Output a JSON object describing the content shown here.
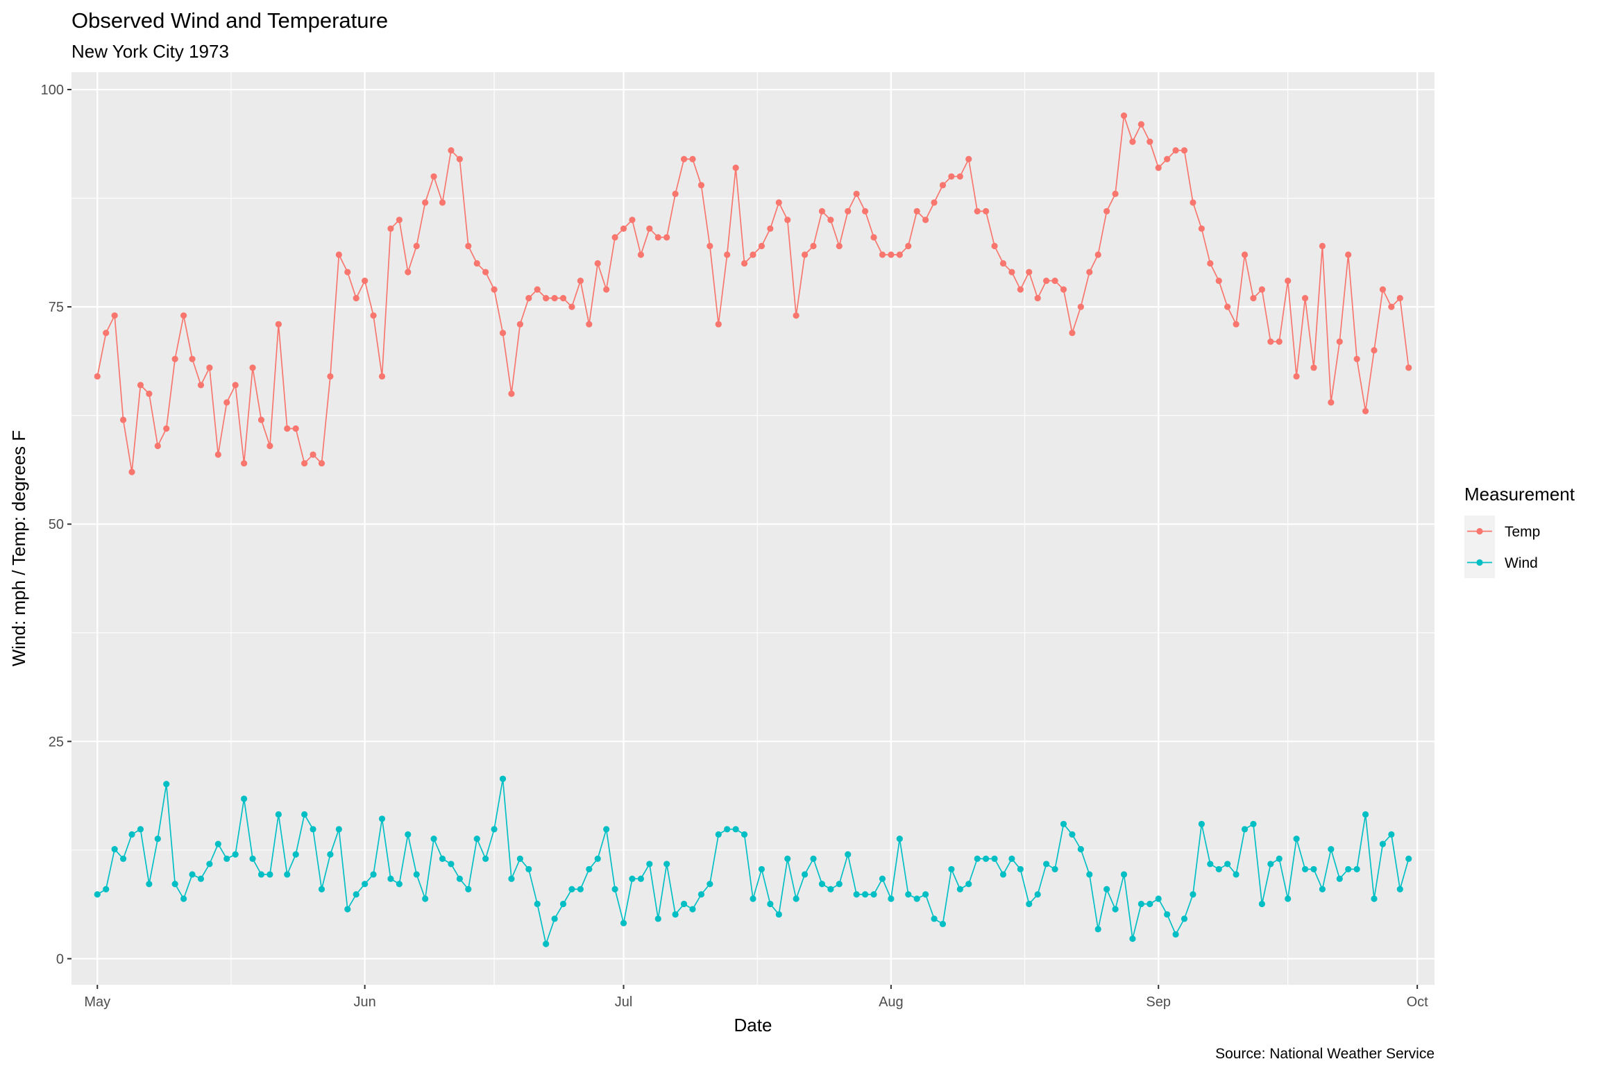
{
  "chart_data": {
    "type": "line",
    "title": "Observed Wind and Temperature",
    "subtitle": "New York City 1973",
    "xlabel": "Date",
    "ylabel": "Wind: mph / Temp: degrees F",
    "caption": "Source: National Weather Service",
    "x_start_date": "1973-05-01",
    "x_end_date": "1973-09-30",
    "xlim": [
      "1973-04-28",
      "1973-10-03"
    ],
    "ylim": [
      -3,
      102
    ],
    "x_ticks": [
      {
        "label": "May",
        "date": "1973-05-01"
      },
      {
        "label": "Jun",
        "date": "1973-06-01"
      },
      {
        "label": "Jul",
        "date": "1973-07-01"
      },
      {
        "label": "Aug",
        "date": "1973-08-01"
      },
      {
        "label": "Sep",
        "date": "1973-09-01"
      },
      {
        "label": "Oct",
        "date": "1973-10-01"
      }
    ],
    "y_ticks": [
      0,
      25,
      50,
      75,
      100
    ],
    "grid": true,
    "legend": {
      "title": "Measurement",
      "position": "right"
    },
    "series": [
      {
        "name": "Temp",
        "color": "#F8766D",
        "values": [
          67,
          72,
          74,
          62,
          56,
          66,
          65,
          59,
          61,
          69,
          74,
          69,
          66,
          68,
          58,
          64,
          66,
          57,
          68,
          62,
          59,
          73,
          61,
          61,
          57,
          58,
          57,
          67,
          81,
          79,
          76,
          78,
          74,
          67,
          84,
          85,
          79,
          82,
          87,
          90,
          87,
          93,
          92,
          82,
          80,
          79,
          77,
          72,
          65,
          73,
          76,
          77,
          76,
          76,
          76,
          75,
          78,
          73,
          80,
          77,
          83,
          84,
          85,
          81,
          84,
          83,
          83,
          88,
          92,
          92,
          89,
          82,
          73,
          81,
          91,
          80,
          81,
          82,
          84,
          87,
          85,
          74,
          81,
          82,
          86,
          85,
          82,
          86,
          88,
          86,
          83,
          81,
          81,
          81,
          82,
          86,
          85,
          87,
          89,
          90,
          90,
          92,
          86,
          86,
          82,
          80,
          79,
          77,
          79,
          76,
          78,
          78,
          77,
          72,
          75,
          79,
          81,
          86,
          88,
          97,
          94,
          96,
          94,
          91,
          92,
          93,
          93,
          87,
          84,
          80,
          78,
          75,
          73,
          81,
          76,
          77,
          71,
          71,
          78,
          67,
          76,
          68,
          82,
          64,
          71,
          81,
          69,
          63,
          70,
          77,
          75,
          76,
          68
        ]
      },
      {
        "name": "Wind",
        "color": "#00BFC4",
        "values": [
          7.4,
          8.0,
          12.6,
          11.5,
          14.3,
          14.9,
          8.6,
          13.8,
          20.1,
          8.6,
          6.9,
          9.7,
          9.2,
          10.9,
          13.2,
          11.5,
          12.0,
          18.4,
          11.5,
          9.7,
          9.7,
          16.6,
          9.7,
          12.0,
          16.6,
          14.9,
          8.0,
          12.0,
          14.9,
          5.7,
          7.4,
          8.6,
          9.7,
          16.1,
          9.2,
          8.6,
          14.3,
          9.7,
          6.9,
          13.8,
          11.5,
          10.9,
          9.2,
          8.0,
          13.8,
          11.5,
          14.9,
          20.7,
          9.2,
          11.5,
          10.3,
          6.3,
          1.7,
          4.6,
          6.3,
          8.0,
          8.0,
          10.3,
          11.5,
          14.9,
          8.0,
          4.1,
          9.2,
          9.2,
          10.9,
          4.6,
          10.9,
          5.1,
          6.3,
          5.7,
          7.4,
          8.6,
          14.3,
          14.9,
          14.9,
          14.3,
          6.9,
          10.3,
          6.3,
          5.1,
          11.5,
          6.9,
          9.7,
          11.5,
          8.6,
          8.0,
          8.6,
          12.0,
          7.4,
          7.4,
          7.4,
          9.2,
          6.9,
          13.8,
          7.4,
          6.9,
          7.4,
          4.6,
          4.0,
          10.3,
          8.0,
          8.6,
          11.5,
          11.5,
          11.5,
          9.7,
          11.5,
          10.3,
          6.3,
          7.4,
          10.9,
          10.3,
          15.5,
          14.3,
          12.6,
          9.7,
          3.4,
          8.0,
          5.7,
          9.7,
          2.3,
          6.3,
          6.3,
          6.9,
          5.1,
          2.8,
          4.6,
          7.4,
          15.5,
          10.9,
          10.3,
          10.9,
          9.7,
          14.9,
          15.5,
          6.3,
          10.9,
          11.5,
          6.9,
          13.8,
          10.3,
          10.3,
          8.0,
          12.6,
          9.2,
          10.3,
          10.3,
          16.6,
          6.9,
          13.2,
          14.3,
          8.0,
          11.5
        ]
      }
    ]
  }
}
